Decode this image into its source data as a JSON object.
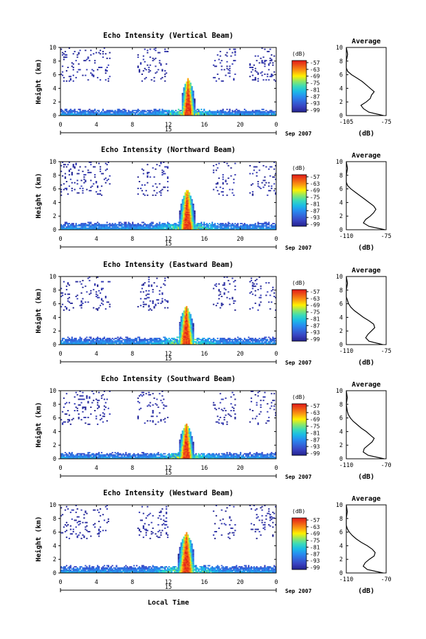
{
  "figure": {
    "xlabel": "Local Time",
    "date_label": "Sep 2007",
    "colorbar_unit": "(dB)",
    "colorbar_ticks": [
      "-57",
      "-63",
      "-69",
      "-75",
      "-81",
      "-87",
      "-93",
      "-99"
    ],
    "x_ticks": [
      "0",
      "4",
      "8",
      "12",
      "16",
      "20",
      "0"
    ],
    "day_label": "15",
    "ylabel": "Height (km)",
    "y_ticks": [
      "0",
      "2",
      "4",
      "6",
      "8",
      "10"
    ],
    "avg_title": "Average",
    "avg_xlabel": "(dB)",
    "colors": {
      "low": "#2b2f8f",
      "mid": "#16c8d8",
      "high": "#e62020",
      "peak": "#ffe800"
    }
  },
  "chart_data": [
    {
      "type": "heatmap",
      "title": "Echo Intensity (Vertical Beam)",
      "xlabel": "",
      "ylabel": "Height (km)",
      "xlim": [
        0,
        24
      ],
      "ylim": [
        0,
        10
      ],
      "clim": [
        -99,
        -57
      ],
      "convective_tower": {
        "time_range": [
          13.5,
          15.0
        ],
        "peak_time": 14.2,
        "top_km": 5.5
      },
      "boundary_layer_top_km": 1.0,
      "avg_profile": {
        "title": "Average",
        "xlabel": "(dB)",
        "xlim": [
          -105,
          -75
        ],
        "xticks": [
          "-105",
          "-75"
        ],
        "height_km": [
          0,
          0.5,
          1,
          1.5,
          2,
          2.5,
          3,
          3.5,
          4,
          4.5,
          5,
          5.5,
          6,
          6.5,
          7,
          8,
          9,
          10
        ],
        "db": [
          -77,
          -88,
          -92,
          -94,
          -90,
          -87,
          -86,
          -84,
          -87,
          -90,
          -93,
          -97,
          -101,
          -104,
          -105,
          -105,
          -104,
          -105
        ]
      }
    },
    {
      "type": "heatmap",
      "title": "Echo Intensity (Northward Beam)",
      "xlabel": "",
      "ylabel": "Height (km)",
      "xlim": [
        0,
        24
      ],
      "ylim": [
        0,
        10
      ],
      "clim": [
        -99,
        -57
      ],
      "convective_tower": {
        "time_range": [
          13.4,
          15.1
        ],
        "peak_time": 14.1,
        "top_km": 6.0
      },
      "boundary_layer_top_km": 1.2,
      "avg_profile": {
        "title": "Average",
        "xlabel": "(dB)",
        "xlim": [
          -110,
          -75
        ],
        "xticks": [
          "-110",
          "-75"
        ],
        "height_km": [
          0,
          0.5,
          1,
          1.5,
          2,
          2.5,
          3,
          3.5,
          4,
          4.5,
          5,
          5.5,
          6,
          6.5,
          7,
          8,
          9,
          10
        ],
        "db": [
          -76,
          -90,
          -95,
          -93,
          -89,
          -86,
          -84,
          -86,
          -90,
          -94,
          -98,
          -102,
          -106,
          -109,
          -110,
          -110,
          -109,
          -110
        ]
      }
    },
    {
      "type": "heatmap",
      "title": "Echo Intensity (Eastward Beam)",
      "xlabel": "",
      "ylabel": "Height (km)",
      "xlim": [
        0,
        24
      ],
      "ylim": [
        0,
        10
      ],
      "clim": [
        -99,
        -57
      ],
      "convective_tower": {
        "time_range": [
          13.3,
          15.0
        ],
        "peak_time": 14.0,
        "top_km": 5.7
      },
      "boundary_layer_top_km": 1.2,
      "avg_profile": {
        "title": "Average",
        "xlabel": "(dB)",
        "xlim": [
          -110,
          -75
        ],
        "xticks": [
          "-110",
          "-75"
        ],
        "height_km": [
          0,
          0.5,
          1,
          1.5,
          2,
          2.5,
          3,
          3.5,
          4,
          4.5,
          5,
          5.5,
          6,
          6.5,
          7,
          8,
          9,
          10
        ],
        "db": [
          -78,
          -90,
          -93,
          -91,
          -88,
          -85,
          -86,
          -90,
          -95,
          -99,
          -103,
          -106,
          -108,
          -109,
          -110,
          -110,
          -109,
          -110
        ]
      }
    },
    {
      "type": "heatmap",
      "title": "Echo Intensity (Southward Beam)",
      "xlabel": "",
      "ylabel": "Height (km)",
      "xlim": [
        0,
        24
      ],
      "ylim": [
        0,
        10
      ],
      "clim": [
        -99,
        -57
      ],
      "convective_tower": {
        "time_range": [
          13.3,
          14.9
        ],
        "peak_time": 14.0,
        "top_km": 5.2
      },
      "boundary_layer_top_km": 1.0,
      "avg_profile": {
        "title": "Average",
        "xlabel": "(dB)",
        "xlim": [
          -110,
          -70
        ],
        "xticks": [
          "-110",
          "-70"
        ],
        "height_km": [
          0,
          0.5,
          1,
          1.5,
          2,
          2.5,
          3,
          3.5,
          4,
          4.5,
          5,
          5.5,
          6,
          6.5,
          7,
          8,
          9,
          10
        ],
        "db": [
          -72,
          -88,
          -93,
          -92,
          -88,
          -84,
          -82,
          -86,
          -90,
          -95,
          -99,
          -103,
          -106,
          -108,
          -109,
          -110,
          -109,
          -110
        ]
      }
    },
    {
      "type": "heatmap",
      "title": "Echo Intensity (Westward Beam)",
      "xlabel": "Local Time",
      "ylabel": "Height (km)",
      "xlim": [
        0,
        24
      ],
      "ylim": [
        0,
        10
      ],
      "clim": [
        -99,
        -57
      ],
      "convective_tower": {
        "time_range": [
          13.2,
          15.0
        ],
        "peak_time": 14.0,
        "top_km": 6.0
      },
      "boundary_layer_top_km": 1.2,
      "avg_profile": {
        "title": "Average",
        "xlabel": "(dB)",
        "xlim": [
          -110,
          -70
        ],
        "xticks": [
          "-110",
          "-70"
        ],
        "height_km": [
          0,
          0.5,
          1,
          1.5,
          2,
          2.5,
          3,
          3.5,
          4,
          4.5,
          5,
          5.5,
          6,
          6.5,
          7,
          8,
          9,
          10
        ],
        "db": [
          -73,
          -89,
          -93,
          -91,
          -87,
          -82,
          -81,
          -84,
          -89,
          -95,
          -100,
          -104,
          -107,
          -109,
          -110,
          -110,
          -109,
          -110
        ]
      }
    }
  ]
}
